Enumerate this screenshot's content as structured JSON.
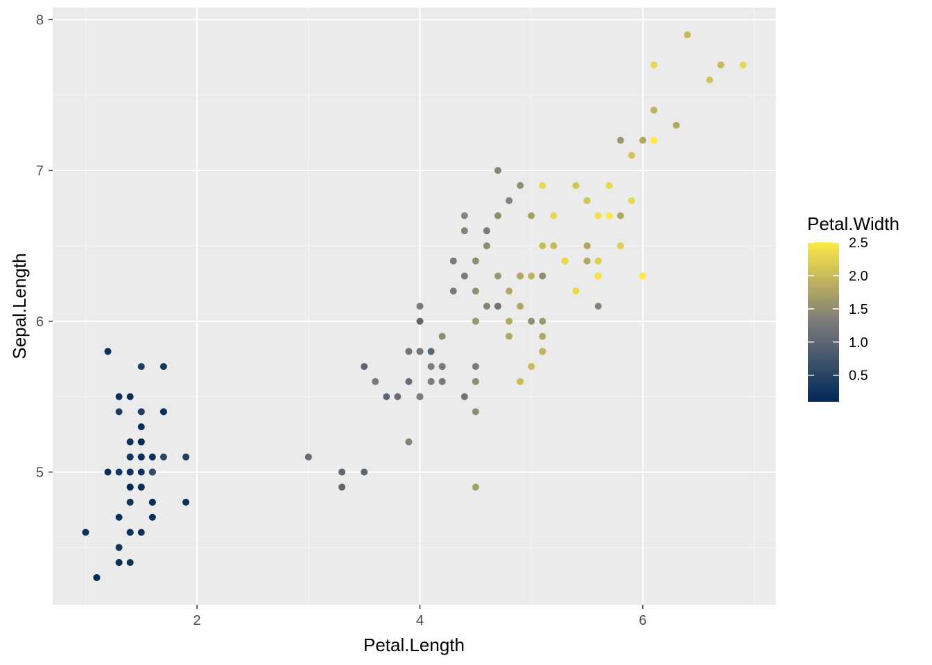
{
  "chart_data": {
    "type": "scatter",
    "xlabel": "Petal.Length",
    "ylabel": "Sepal.Length",
    "xlim": [
      0.705,
      7.195
    ],
    "ylim": [
      4.12,
      8.08
    ],
    "x_ticks": [
      2,
      4,
      6
    ],
    "y_ticks": [
      5,
      6,
      7,
      8
    ],
    "grid": true,
    "legend": {
      "title": "Petal.Width",
      "placement": "right",
      "type": "colorbar",
      "range": [
        0.1,
        2.5
      ],
      "ticks": [
        0.5,
        1.0,
        1.5,
        2.0,
        2.5
      ],
      "tick_labels": [
        "0.5",
        "1.0",
        "1.5",
        "2.0",
        "2.5"
      ],
      "low_color": "#002a59",
      "mid_color": "#7a7a7a",
      "high_color": "#ffe945"
    },
    "colors": {
      "panel_background": "#ebebeb",
      "grid_major": "#ffffff",
      "grid_minor": "#f5f5f5"
    },
    "points": [
      [
        1.4,
        5.1,
        0.2
      ],
      [
        1.4,
        4.9,
        0.2
      ],
      [
        1.3,
        4.7,
        0.2
      ],
      [
        1.5,
        4.6,
        0.2
      ],
      [
        1.4,
        5.0,
        0.2
      ],
      [
        1.7,
        5.4,
        0.4
      ],
      [
        1.4,
        4.6,
        0.3
      ],
      [
        1.5,
        5.0,
        0.2
      ],
      [
        1.4,
        4.4,
        0.2
      ],
      [
        1.5,
        4.9,
        0.1
      ],
      [
        1.5,
        5.4,
        0.2
      ],
      [
        1.6,
        4.8,
        0.2
      ],
      [
        1.4,
        4.8,
        0.1
      ],
      [
        1.1,
        4.3,
        0.1
      ],
      [
        1.2,
        5.8,
        0.2
      ],
      [
        1.5,
        5.7,
        0.4
      ],
      [
        1.3,
        5.4,
        0.4
      ],
      [
        1.4,
        5.1,
        0.3
      ],
      [
        1.7,
        5.7,
        0.3
      ],
      [
        1.5,
        5.1,
        0.3
      ],
      [
        1.7,
        5.4,
        0.2
      ],
      [
        1.5,
        5.1,
        0.4
      ],
      [
        1.0,
        4.6,
        0.2
      ],
      [
        1.7,
        5.1,
        0.5
      ],
      [
        1.9,
        4.8,
        0.2
      ],
      [
        1.6,
        5.0,
        0.2
      ],
      [
        1.6,
        5.0,
        0.4
      ],
      [
        1.5,
        5.2,
        0.2
      ],
      [
        1.4,
        5.2,
        0.2
      ],
      [
        1.6,
        4.7,
        0.2
      ],
      [
        1.6,
        4.8,
        0.2
      ],
      [
        1.5,
        5.4,
        0.4
      ],
      [
        1.5,
        5.2,
        0.1
      ],
      [
        1.4,
        5.5,
        0.2
      ],
      [
        1.5,
        4.9,
        0.2
      ],
      [
        1.2,
        5.0,
        0.2
      ],
      [
        1.3,
        5.5,
        0.2
      ],
      [
        1.4,
        4.9,
        0.1
      ],
      [
        1.3,
        4.4,
        0.2
      ],
      [
        1.5,
        5.1,
        0.2
      ],
      [
        1.3,
        5.0,
        0.3
      ],
      [
        1.3,
        4.5,
        0.3
      ],
      [
        1.3,
        4.4,
        0.2
      ],
      [
        1.6,
        5.0,
        0.6
      ],
      [
        1.9,
        5.1,
        0.4
      ],
      [
        1.4,
        4.8,
        0.3
      ],
      [
        1.6,
        5.1,
        0.2
      ],
      [
        1.4,
        4.6,
        0.2
      ],
      [
        1.5,
        5.3,
        0.2
      ],
      [
        1.4,
        5.0,
        0.2
      ],
      [
        4.7,
        7.0,
        1.4
      ],
      [
        4.5,
        6.4,
        1.5
      ],
      [
        4.9,
        6.9,
        1.5
      ],
      [
        4.0,
        5.5,
        1.3
      ],
      [
        4.6,
        6.5,
        1.5
      ],
      [
        4.5,
        5.7,
        1.3
      ],
      [
        4.7,
        6.3,
        1.6
      ],
      [
        3.3,
        4.9,
        1.0
      ],
      [
        4.6,
        6.6,
        1.3
      ],
      [
        3.9,
        5.2,
        1.4
      ],
      [
        3.5,
        5.0,
        1.0
      ],
      [
        4.2,
        5.9,
        1.5
      ],
      [
        4.0,
        6.0,
        1.0
      ],
      [
        4.7,
        6.1,
        1.4
      ],
      [
        3.6,
        5.6,
        1.3
      ],
      [
        4.4,
        6.7,
        1.4
      ],
      [
        4.5,
        5.6,
        1.5
      ],
      [
        4.1,
        5.8,
        1.0
      ],
      [
        4.5,
        6.2,
        1.5
      ],
      [
        3.9,
        5.6,
        1.1
      ],
      [
        4.8,
        5.9,
        1.8
      ],
      [
        4.0,
        6.1,
        1.3
      ],
      [
        4.9,
        6.3,
        1.5
      ],
      [
        4.7,
        6.1,
        1.2
      ],
      [
        4.3,
        6.4,
        1.3
      ],
      [
        4.4,
        6.6,
        1.4
      ],
      [
        4.8,
        6.8,
        1.4
      ],
      [
        5.0,
        6.7,
        1.7
      ],
      [
        4.5,
        6.0,
        1.5
      ],
      [
        3.5,
        5.7,
        1.0
      ],
      [
        3.8,
        5.5,
        1.1
      ],
      [
        3.7,
        5.5,
        1.0
      ],
      [
        3.9,
        5.8,
        1.2
      ],
      [
        5.1,
        6.0,
        1.6
      ],
      [
        4.5,
        5.4,
        1.5
      ],
      [
        4.5,
        6.0,
        1.6
      ],
      [
        4.7,
        6.7,
        1.5
      ],
      [
        4.4,
        6.3,
        1.3
      ],
      [
        4.1,
        5.6,
        1.3
      ],
      [
        4.0,
        5.5,
        1.3
      ],
      [
        4.4,
        5.5,
        1.2
      ],
      [
        4.6,
        6.1,
        1.4
      ],
      [
        4.0,
        5.8,
        1.2
      ],
      [
        3.3,
        5.0,
        1.0
      ],
      [
        4.2,
        5.6,
        1.3
      ],
      [
        4.2,
        5.7,
        1.2
      ],
      [
        4.2,
        5.7,
        1.3
      ],
      [
        4.3,
        6.2,
        1.3
      ],
      [
        3.0,
        5.1,
        1.1
      ],
      [
        4.1,
        5.7,
        1.3
      ],
      [
        6.0,
        6.3,
        2.5
      ],
      [
        5.1,
        5.8,
        1.9
      ],
      [
        5.9,
        7.1,
        2.1
      ],
      [
        5.6,
        6.3,
        1.8
      ],
      [
        5.8,
        6.5,
        2.2
      ],
      [
        6.6,
        7.6,
        2.1
      ],
      [
        4.5,
        4.9,
        1.7
      ],
      [
        6.3,
        7.3,
        1.8
      ],
      [
        5.8,
        6.7,
        1.8
      ],
      [
        6.1,
        7.2,
        2.5
      ],
      [
        5.1,
        6.5,
        2.0
      ],
      [
        5.3,
        6.4,
        1.9
      ],
      [
        5.5,
        6.8,
        2.1
      ],
      [
        5.0,
        5.7,
        2.0
      ],
      [
        5.1,
        5.8,
        2.4
      ],
      [
        5.3,
        6.4,
        2.3
      ],
      [
        5.5,
        6.5,
        1.8
      ],
      [
        6.7,
        7.7,
        2.2
      ],
      [
        6.9,
        7.7,
        2.3
      ],
      [
        5.0,
        6.0,
        1.5
      ],
      [
        5.7,
        6.9,
        2.3
      ],
      [
        4.9,
        5.6,
        2.0
      ],
      [
        6.7,
        7.7,
        2.0
      ],
      [
        4.9,
        6.3,
        1.8
      ],
      [
        5.7,
        6.7,
        2.1
      ],
      [
        6.0,
        7.2,
        1.8
      ],
      [
        4.8,
        6.2,
        1.8
      ],
      [
        4.9,
        6.1,
        1.8
      ],
      [
        5.6,
        6.4,
        2.1
      ],
      [
        5.8,
        7.2,
        1.6
      ],
      [
        6.1,
        7.4,
        1.9
      ],
      [
        6.4,
        7.9,
        2.0
      ],
      [
        5.6,
        6.4,
        2.2
      ],
      [
        5.1,
        6.3,
        1.5
      ],
      [
        5.6,
        6.1,
        1.4
      ],
      [
        6.1,
        7.7,
        2.3
      ],
      [
        5.6,
        6.3,
        2.4
      ],
      [
        5.5,
        6.4,
        1.8
      ],
      [
        4.8,
        6.0,
        1.8
      ],
      [
        5.4,
        6.9,
        2.1
      ],
      [
        5.6,
        6.7,
        2.4
      ],
      [
        5.1,
        6.9,
        2.3
      ],
      [
        5.1,
        5.8,
        1.9
      ],
      [
        5.9,
        6.8,
        2.3
      ],
      [
        5.7,
        6.7,
        2.5
      ],
      [
        5.2,
        6.7,
        2.3
      ],
      [
        5.0,
        6.3,
        1.9
      ],
      [
        5.2,
        6.5,
        2.0
      ],
      [
        5.4,
        6.2,
        2.3
      ],
      [
        5.1,
        5.9,
        1.8
      ]
    ]
  }
}
